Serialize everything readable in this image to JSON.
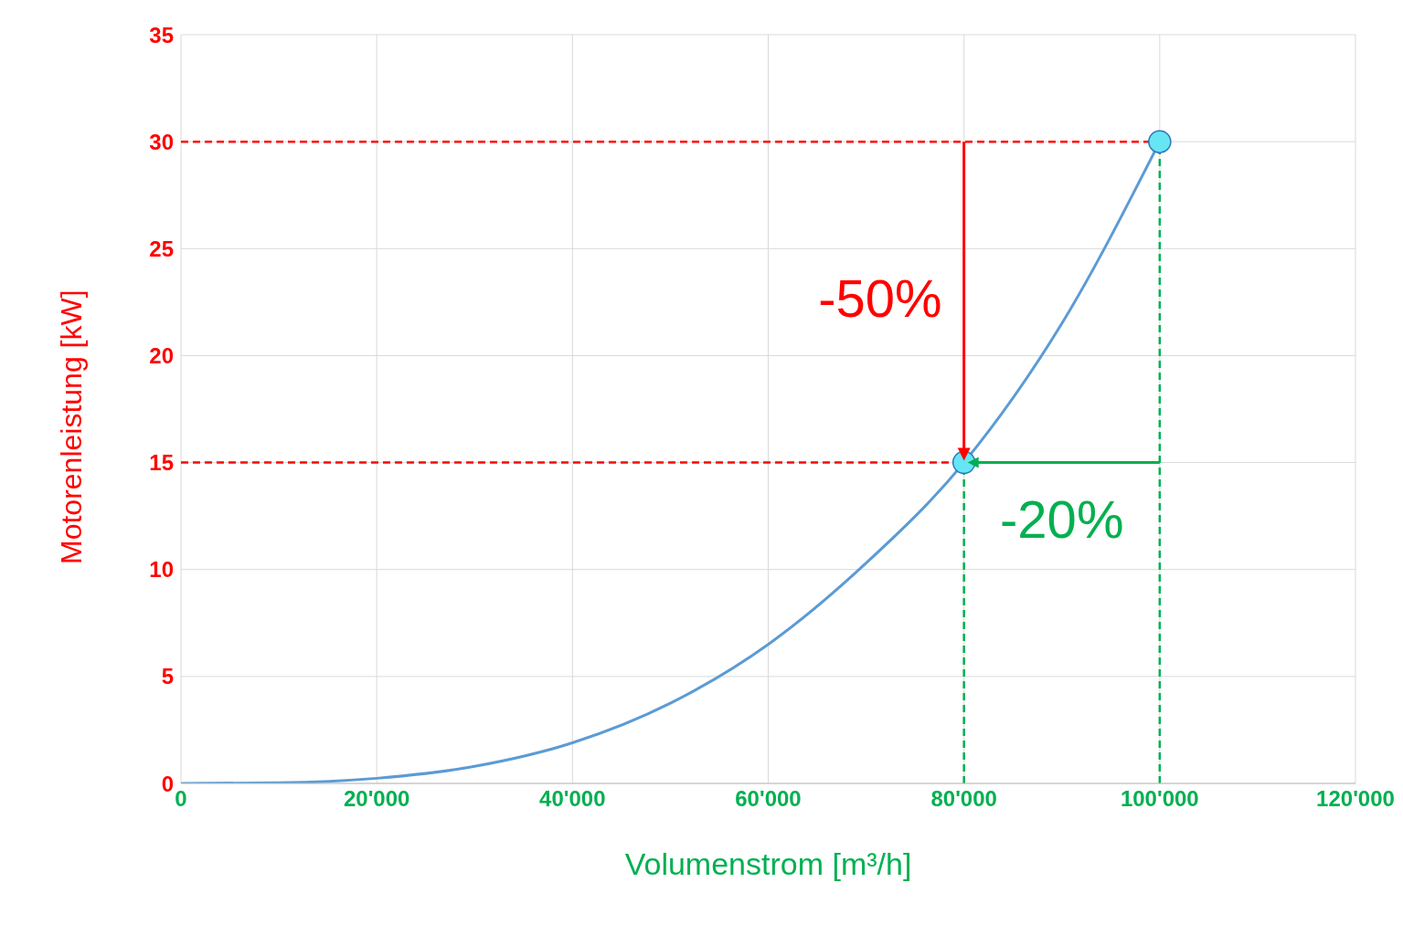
{
  "chart_data": {
    "type": "line",
    "xlabel": "Volumenstrom [m³/h]",
    "ylabel": "Motorenleistung [kW]",
    "xlim": [
      0,
      120000
    ],
    "xticks": [
      0,
      {
        "value": 20000,
        "label": "20'000"
      },
      {
        "value": 40000,
        "label": "40'000"
      },
      {
        "value": 60000,
        "label": "60'000"
      },
      {
        "value": 80000,
        "label": "80'000"
      },
      {
        "value": 100000,
        "label": "100'000"
      },
      {
        "value": 120000,
        "label": "120'000"
      }
    ],
    "ylim": [
      0,
      35
    ],
    "yticks": [
      0,
      5,
      10,
      15,
      20,
      25,
      30,
      35
    ],
    "grid": true,
    "series": [
      {
        "color": "#5b9bd5",
        "marker": "none",
        "x": [
          0,
          10000,
          20000,
          30000,
          40000,
          50000,
          60000,
          70000,
          80000,
          90000,
          100000
        ],
        "values": [
          0,
          0.03,
          0.24,
          0.8,
          1.9,
          3.75,
          6.5,
          10.3,
          15,
          21.5,
          30
        ]
      },
      {
        "type": "scatter",
        "color": "#66e6f5",
        "marker": "circle",
        "x": [
          80000,
          100000
        ],
        "values": [
          15,
          30
        ]
      }
    ],
    "ref_lines": [
      {
        "axis": "y",
        "value": 30,
        "color": "#ff0000",
        "line_style": "dashed"
      },
      {
        "axis": "y",
        "value": 15,
        "color": "#ff0000",
        "line_style": "dashed"
      },
      {
        "axis": "x",
        "value": 80000,
        "color": "#00b050",
        "line_style": "dashed"
      },
      {
        "axis": "x",
        "value": 100000,
        "color": "#00b050",
        "line_style": "dashed"
      }
    ],
    "annotations": [
      {
        "text": "-50%",
        "x": 80000,
        "y": 15
      },
      {
        "text": "-20%",
        "x": 80000,
        "y": 15
      }
    ]
  }
}
